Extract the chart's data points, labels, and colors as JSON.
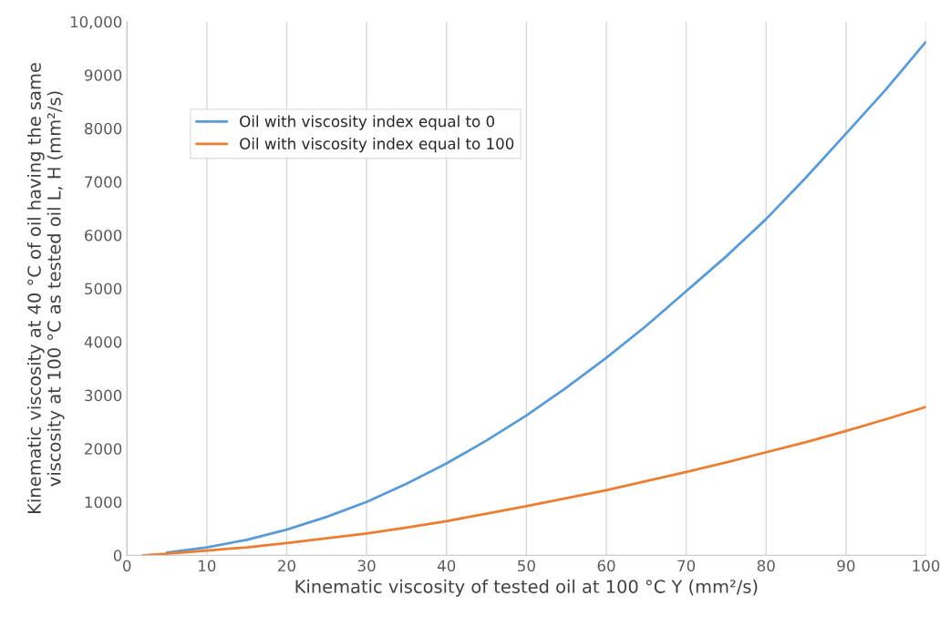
{
  "chart_data": {
    "type": "line",
    "xlabel": "Kinematic viscosity of tested oil at 100 °C Y (mm²/s)",
    "ylabel": "Kinematic viscosity at 40 °C of oil having the same\nviscosity at 100 °C as tested oil L, H (mm²/s)",
    "x": [
      2,
      5,
      10,
      15,
      20,
      25,
      30,
      35,
      40,
      45,
      50,
      55,
      60,
      65,
      70,
      75,
      80,
      85,
      90,
      95,
      100
    ],
    "series": [
      {
        "name": "Oil with viscosity index equal to 0",
        "color": "#5b9bd5",
        "values": [
          null,
          50,
          150,
          290,
          480,
          720,
          1000,
          1340,
          1720,
          2150,
          2620,
          3140,
          3700,
          4300,
          4950,
          5600,
          6300,
          7080,
          7900,
          8730,
          9620
        ]
      },
      {
        "name": "Oil with viscosity index equal to 100",
        "color": "#ed7d31",
        "values": [
          0,
          30,
          90,
          150,
          230,
          320,
          410,
          520,
          640,
          780,
          920,
          1070,
          1220,
          1390,
          1560,
          1740,
          1930,
          2120,
          2330,
          2550,
          2780
        ]
      }
    ],
    "xlim": [
      0,
      100
    ],
    "xticks": [
      0,
      10,
      20,
      30,
      40,
      50,
      60,
      70,
      80,
      90,
      100
    ],
    "ylim": [
      0,
      10000
    ],
    "yticks": [
      0,
      1000,
      2000,
      3000,
      4000,
      5000,
      6000,
      7000,
      8000,
      9000,
      {
        "value": 10000,
        "label": "10,000"
      }
    ],
    "grid": "x",
    "legend": "top left",
    "marker": "none",
    "line_style": "solid"
  }
}
